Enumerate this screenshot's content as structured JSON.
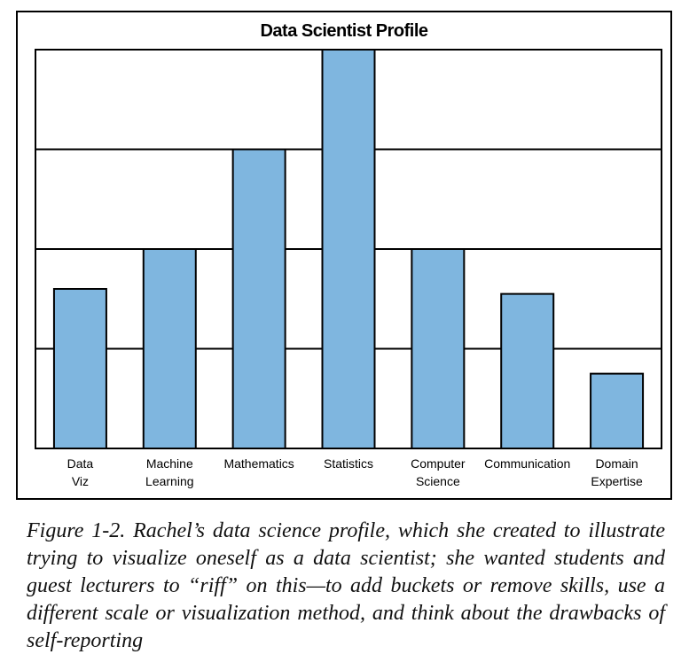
{
  "chart_data": {
    "type": "bar",
    "title": "Data Scientist Profile",
    "categories": [
      "Data\nViz",
      "Machine\nLearning",
      "Mathematics",
      "Statistics",
      "Computer\nScience",
      "Communication",
      "Domain\nExpertise"
    ],
    "values": [
      1.6,
      2.0,
      3.0,
      4.0,
      2.0,
      1.55,
      0.75
    ],
    "ylim": [
      0,
      4
    ],
    "grid": true,
    "bar_color": "#7fb6df",
    "xlabel": "",
    "ylabel": ""
  },
  "caption": "Figure 1-2. Rachel’s data science profile, which she created to illustrate trying to visualize oneself as a data scientist; she wanted students and guest lecturers to “riff” on this—to add buckets or remove skills, use a different scale or visualization method, and think about the drawbacks of self-reporting"
}
